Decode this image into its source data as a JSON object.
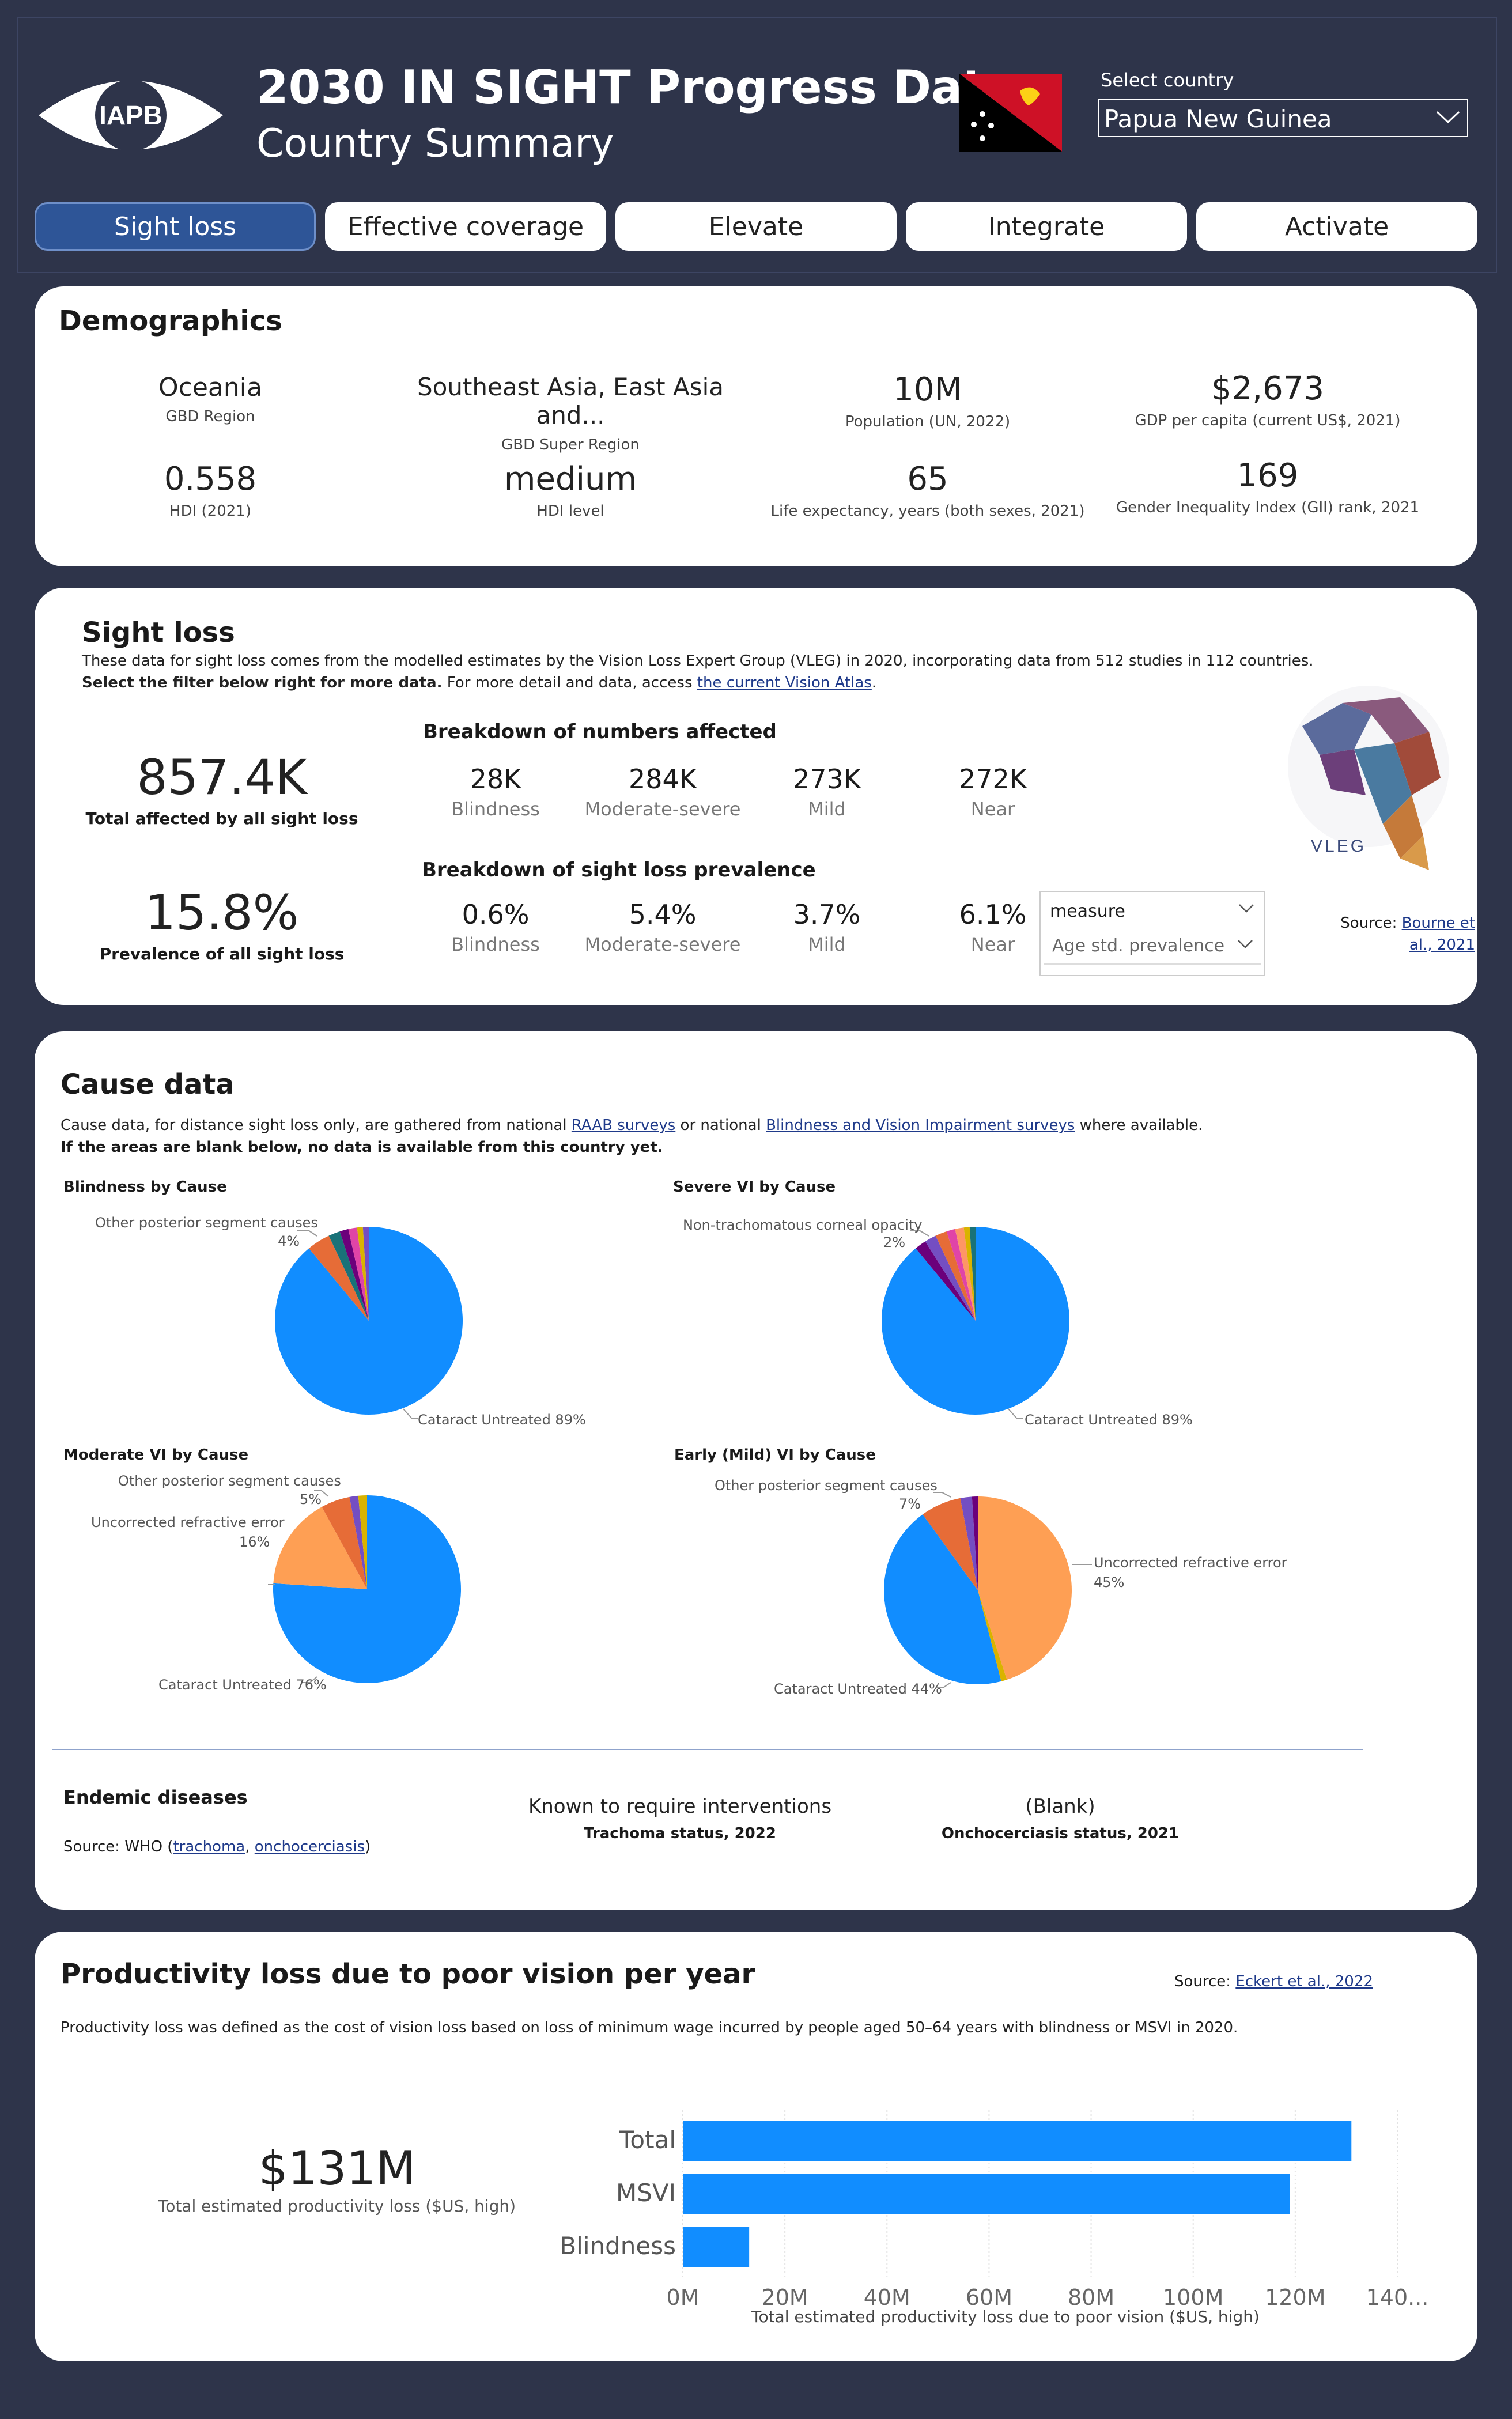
{
  "header": {
    "logo_text": "IAPB",
    "title": "2030 IN SIGHT Progress Data",
    "subtitle": "Country Summary",
    "country_label": "Select country",
    "country_value": "Papua New Guinea"
  },
  "tabs": [
    "Sight loss",
    "Effective coverage",
    "Elevate",
    "Integrate",
    "Activate"
  ],
  "demographics": {
    "title": "Demographics",
    "items": [
      {
        "value": "Oceania",
        "label": "GBD Region"
      },
      {
        "value": "Southeast Asia, East Asia and...",
        "label": "GBD Super Region"
      },
      {
        "value": "10M",
        "label": "Population (UN, 2022)"
      },
      {
        "value": "$2,673",
        "label": "GDP per capita (current US$, 2021)"
      },
      {
        "value": "0.558",
        "label": "HDI (2021)"
      },
      {
        "value": "medium",
        "label": "HDI level"
      },
      {
        "value": "65",
        "label": "Life expectancy, years (both sexes, 2021)"
      },
      {
        "value": "169",
        "label": "Gender Inequality Index (GII) rank, 2021"
      }
    ]
  },
  "sight_loss": {
    "title": "Sight loss",
    "desc1": "These data for sight loss comes from the modelled estimates by the Vision Loss Expert Group (VLEG) in 2020, incorporating data from 512 studies in 112 countries.",
    "desc2_bold": "Select the filter below right for more data.",
    "desc2_rest": " For more detail and data, access ",
    "desc2_link": "the current Vision Atlas",
    "desc2_end": ".",
    "total_value": "857.4K",
    "total_label": "Total affected by all sight loss",
    "prevalence_value": "15.8%",
    "prevalence_label": "Prevalence of all sight loss",
    "numbers_title": "Breakdown of numbers affected",
    "numbers": [
      {
        "value": "28K",
        "label": "Blindness"
      },
      {
        "value": "284K",
        "label": "Moderate-severe"
      },
      {
        "value": "273K",
        "label": "Mild"
      },
      {
        "value": "272K",
        "label": "Near"
      }
    ],
    "prevalence_title": "Breakdown of sight loss prevalence",
    "prevalence": [
      {
        "value": "0.6%",
        "label": "Blindness"
      },
      {
        "value": "5.4%",
        "label": "Moderate-severe"
      },
      {
        "value": "3.7%",
        "label": "Mild"
      },
      {
        "value": "6.1%",
        "label": "Near"
      }
    ],
    "measure_label": "measure",
    "measure_value": "Age std. prevalence",
    "vleg_text": "VLEG",
    "source_prefix": "Source: ",
    "source_link1": "Bourne et",
    "source_link2": "al., 2021"
  },
  "cause": {
    "title": "Cause data",
    "desc_prefix": "Cause data, for distance sight loss only, are gathered from national ",
    "link1": "RAAB surveys",
    "desc_mid": " or national ",
    "link2": "Blindness and Vision Impairment surveys",
    "desc_end": " where available.",
    "desc_bold": "If the areas are blank below, no data is available from this country yet.",
    "charts": [
      {
        "title": "Blindness by Cause",
        "labels": [
          "Other posterior segment causes",
          "4%",
          "Cataract Untreated 89%"
        ]
      },
      {
        "title": "Severe VI by Cause",
        "labels": [
          "Non-trachomatous corneal opacity",
          "2%",
          "Cataract Untreated 89%"
        ]
      },
      {
        "title": "Moderate VI by Cause",
        "labels": [
          "Other posterior segment causes",
          "5%",
          "Uncorrected refractive error",
          "16%",
          "Cataract Untreated 76%"
        ]
      },
      {
        "title": "Early (Mild) VI by Cause",
        "labels": [
          "Other posterior segment causes",
          "7%",
          "Uncorrected refractive error",
          "45%",
          "Cataract Untreated 44%"
        ]
      }
    ],
    "endemic_title": "Endemic diseases",
    "endemic_source_prefix": "Source: WHO (",
    "endemic_link1": "trachoma",
    "endemic_sep": ", ",
    "endemic_link2": "onchocerciasis",
    "endemic_end": ")",
    "trachoma_value": "Known to require interventions",
    "trachoma_label": "Trachoma status, 2022",
    "oncho_value": "(Blank)",
    "oncho_label": "Onchocerciasis status, 2021"
  },
  "productivity": {
    "title": "Productivity loss due to poor vision per year",
    "source_prefix": "Source: ",
    "source_link": "Eckert et al., 2022",
    "desc": "Productivity loss was defined as the cost of vision loss based on loss of minimum wage incurred by people aged 50–64 years with blindness or MSVI in 2020.",
    "total_value": "$131M",
    "total_label": "Total estimated productivity loss ($US, high)"
  },
  "chart_data": [
    {
      "type": "pie",
      "title": "Blindness by Cause",
      "slices": [
        {
          "label": "Cataract Untreated",
          "value": 89,
          "color": "#118dff"
        },
        {
          "label": "Other posterior segment causes",
          "value": 4,
          "color": "#e66c37"
        },
        {
          "label": "Other",
          "value": 2,
          "color": "#197278"
        },
        {
          "label": "Other",
          "value": 1.5,
          "color": "#6b007b"
        },
        {
          "label": "Other",
          "value": 1.5,
          "color": "#e044a7"
        },
        {
          "label": "Other",
          "value": 1,
          "color": "#d9b300"
        },
        {
          "label": "Other",
          "value": 1,
          "color": "#744ec2"
        }
      ]
    },
    {
      "type": "pie",
      "title": "Severe VI by Cause",
      "slices": [
        {
          "label": "Cataract Untreated",
          "value": 89,
          "color": "#118dff"
        },
        {
          "label": "Other",
          "value": 2,
          "color": "#6b007b"
        },
        {
          "label": "Non-trachomatous corneal opacity",
          "value": 2,
          "color": "#744ec2"
        },
        {
          "label": "Other",
          "value": 2,
          "color": "#e66c37"
        },
        {
          "label": "Other",
          "value": 1.5,
          "color": "#e044a7"
        },
        {
          "label": "Other",
          "value": 1.5,
          "color": "#fe9666"
        },
        {
          "label": "Other",
          "value": 1,
          "color": "#d9b300"
        },
        {
          "label": "Other",
          "value": 1,
          "color": "#197278"
        }
      ]
    },
    {
      "type": "pie",
      "title": "Moderate VI by Cause",
      "slices": [
        {
          "label": "Cataract Untreated",
          "value": 76,
          "color": "#118dff"
        },
        {
          "label": "Uncorrected refractive error",
          "value": 16,
          "color": "#fe9f54"
        },
        {
          "label": "Other posterior segment causes",
          "value": 5,
          "color": "#e66c37"
        },
        {
          "label": "Other",
          "value": 1.5,
          "color": "#744ec2"
        },
        {
          "label": "Other",
          "value": 1.5,
          "color": "#d9b300"
        }
      ]
    },
    {
      "type": "pie",
      "title": "Early (Mild) VI by Cause",
      "slices": [
        {
          "label": "Uncorrected refractive error",
          "value": 45,
          "color": "#fe9f54"
        },
        {
          "label": "Other",
          "value": 1,
          "color": "#d9b300"
        },
        {
          "label": "Cataract Untreated",
          "value": 44,
          "color": "#118dff"
        },
        {
          "label": "Other posterior segment causes",
          "value": 7,
          "color": "#e66c37"
        },
        {
          "label": "Other",
          "value": 2,
          "color": "#744ec2"
        },
        {
          "label": "Other",
          "value": 1,
          "color": "#6b007b"
        }
      ]
    },
    {
      "type": "bar",
      "orientation": "horizontal",
      "categories": [
        "Total",
        "MSVI",
        "Blindness"
      ],
      "values": [
        131,
        119,
        13
      ],
      "xlabel": "Total estimated productivity loss due to poor vision ($US, high)",
      "xlim": [
        0,
        140
      ],
      "ticks": [
        "0M",
        "20M",
        "40M",
        "60M",
        "80M",
        "100M",
        "120M",
        "140..."
      ],
      "color": "#118dff"
    }
  ]
}
